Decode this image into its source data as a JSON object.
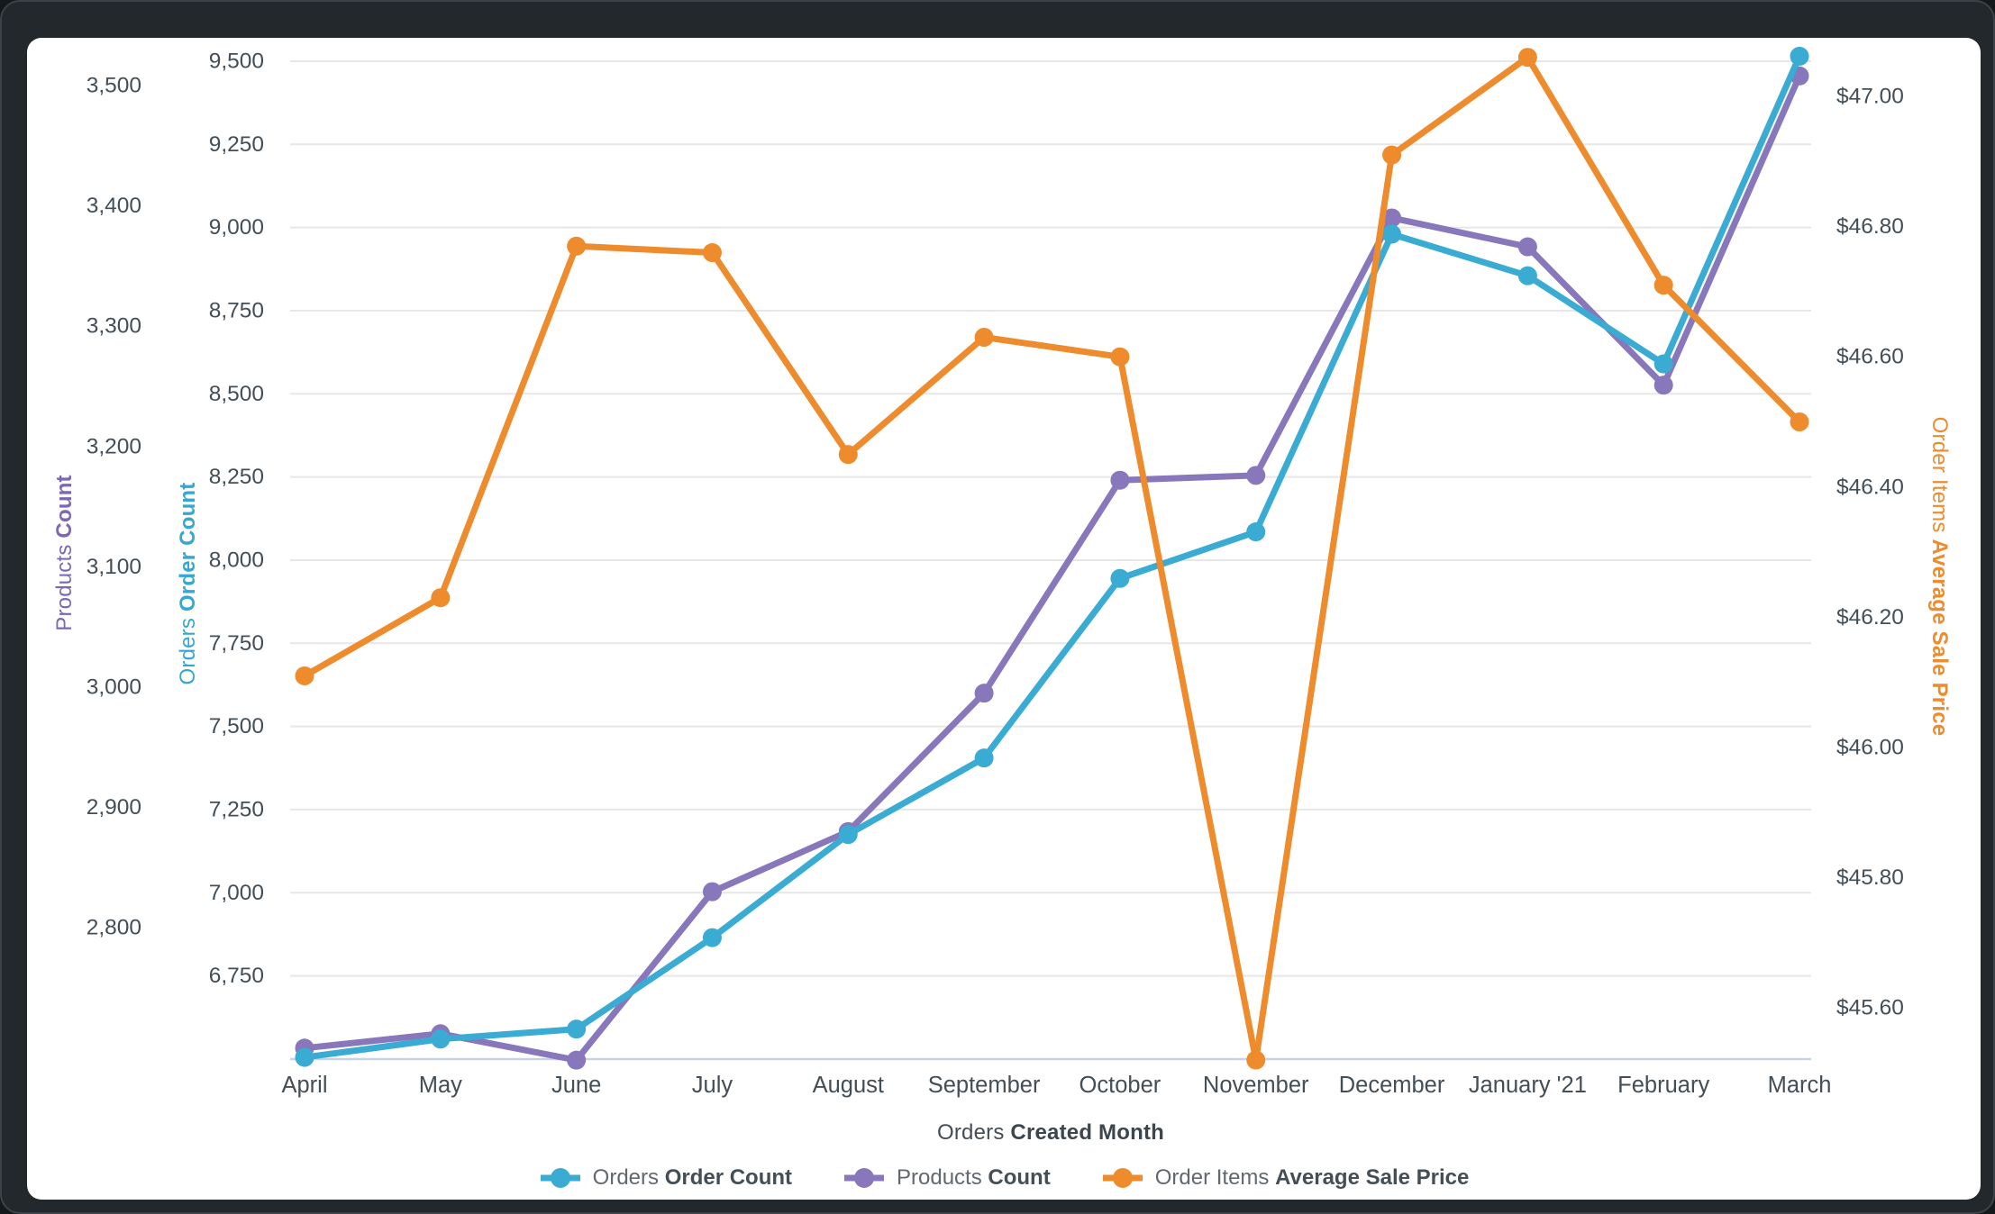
{
  "frame": {
    "background": "#23282d",
    "card_background": "#ffffff"
  },
  "chart_data": {
    "type": "line",
    "title": "",
    "x_categories": [
      "April",
      "May",
      "June",
      "July",
      "August",
      "September",
      "October",
      "November",
      "December",
      "January '21",
      "February",
      "March"
    ],
    "x_axis": {
      "title_regular": "Orders",
      "title_bold": "Created Month"
    },
    "legend_position": "bottom",
    "grid": "horizontal",
    "series": [
      {
        "id": "orders",
        "legend_regular": "Orders",
        "legend_bold": "Order Count",
        "color": "#3aabd2",
        "axis": "orders",
        "values": [
          6505,
          6560,
          6590,
          6865,
          7175,
          7405,
          7945,
          8085,
          8980,
          8855,
          8590,
          9515
        ]
      },
      {
        "id": "products",
        "legend_regular": "Products",
        "legend_bold": "Count",
        "color": "#8877bb",
        "axis": "products",
        "values": [
          2700,
          2712,
          2690,
          2830,
          2880,
          2995,
          3172,
          3176,
          3390,
          3366,
          3251,
          3508
        ]
      },
      {
        "id": "price",
        "legend_regular": "Order Items",
        "legend_bold": "Average Sale Price",
        "color": "#ed8b2d",
        "axis": "price",
        "values": [
          46.11,
          46.23,
          46.77,
          46.76,
          46.45,
          46.63,
          46.6,
          45.52,
          46.91,
          47.06,
          46.71,
          46.5
        ]
      }
    ],
    "axes": {
      "products": {
        "title_regular": "Products",
        "title_bold": "Count",
        "title_color": "#7b68b4",
        "ylim": [
          2690,
          3510
        ],
        "ticks": [
          {
            "label": "3,500",
            "value": 3500
          },
          {
            "label": "3,400",
            "value": 3400
          },
          {
            "label": "3,300",
            "value": 3300
          },
          {
            "label": "3,200",
            "value": 3200
          },
          {
            "label": "3,100",
            "value": 3100
          },
          {
            "label": "3,000",
            "value": 3000
          },
          {
            "label": "2,900",
            "value": 2900
          },
          {
            "label": "2,800",
            "value": 2800
          }
        ]
      },
      "orders": {
        "title_regular": "Orders",
        "title_bold": "Order Count",
        "title_color": "#35a7d1",
        "ylim": [
          6497,
          9517
        ],
        "ticks": [
          {
            "label": "9,500",
            "value": 9500
          },
          {
            "label": "9,250",
            "value": 9250
          },
          {
            "label": "9,000",
            "value": 9000
          },
          {
            "label": "8,750",
            "value": 8750
          },
          {
            "label": "8,500",
            "value": 8500
          },
          {
            "label": "8,250",
            "value": 8250
          },
          {
            "label": "8,000",
            "value": 8000
          },
          {
            "label": "7,750",
            "value": 7750
          },
          {
            "label": "7,500",
            "value": 7500
          },
          {
            "label": "7,250",
            "value": 7250
          },
          {
            "label": "7,000",
            "value": 7000
          },
          {
            "label": "6,750",
            "value": 6750
          }
        ]
      },
      "price": {
        "title_regular": "Order Items",
        "title_bold": "Average Sale Price",
        "title_color": "#ee8b2c",
        "ylim": [
          45.52,
          47.06
        ],
        "ticks": [
          {
            "label": "$47.00",
            "value": 47.0
          },
          {
            "label": "$46.80",
            "value": 46.8
          },
          {
            "label": "$46.60",
            "value": 46.6
          },
          {
            "label": "$46.40",
            "value": 46.4
          },
          {
            "label": "$46.20",
            "value": 46.2
          },
          {
            "label": "$46.00",
            "value": 46.0
          },
          {
            "label": "$45.80",
            "value": 45.8
          },
          {
            "label": "$45.60",
            "value": 45.6
          }
        ]
      }
    },
    "style": {
      "gridline_color": "#e7e7e7",
      "baseline_color": "#c9d3e8"
    }
  }
}
